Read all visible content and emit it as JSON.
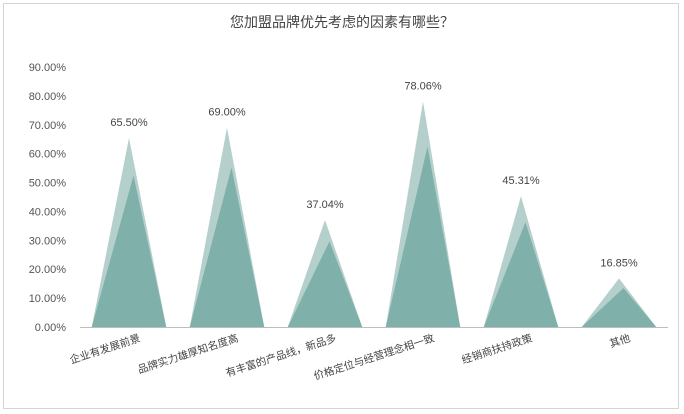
{
  "chart_data": {
    "type": "bar",
    "title": "您加盟品牌优先考虑的因素有哪些？",
    "categories": [
      "企业有发展前景",
      "品牌实力雄厚知名度高",
      "有丰富的产品线，新品多",
      "价格定位与经营理念相一致",
      "经销商扶持政策",
      "其他"
    ],
    "values": [
      65.5,
      69.0,
      37.04,
      78.06,
      45.31,
      16.85
    ],
    "data_labels": [
      "65.50%",
      "69.00%",
      "37.04%",
      "78.06%",
      "45.31%",
      "16.85%"
    ],
    "ylim": [
      0,
      90
    ],
    "yticks": [
      "0.00%",
      "10.00%",
      "20.00%",
      "30.00%",
      "40.00%",
      "50.00%",
      "60.00%",
      "70.00%",
      "80.00%",
      "90.00%"
    ],
    "colors": {
      "back": "#b5d0cc",
      "front": "#7fb1aa",
      "axis": "#bdbdbd"
    },
    "grid": false,
    "legend": "none"
  }
}
